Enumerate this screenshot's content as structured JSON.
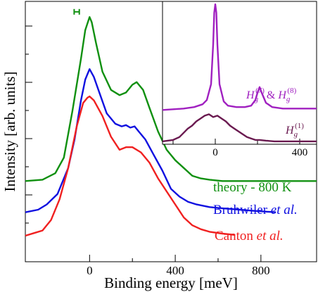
{
  "chart_data": [
    {
      "type": "line",
      "xlabel": "Binding energy [meV]",
      "ylabel": "Intensity [arb. units]",
      "xlim": [
        -300,
        1060
      ],
      "ylim": [
        0,
        100
      ],
      "x_ticks": [
        0,
        400,
        800
      ],
      "grid": false,
      "legend": "inline labels to the right of each curve",
      "error_bar": {
        "x": -60,
        "y": 96,
        "xerr": 12,
        "color": "#109010"
      },
      "series": [
        {
          "name": "theory - 800 K",
          "color": "#109010",
          "x": [
            -300,
            -220,
            -160,
            -120,
            -80,
            -40,
            -20,
            0,
            10,
            30,
            60,
            100,
            140,
            170,
            200,
            220,
            250,
            280,
            320,
            360,
            400,
            440,
            480,
            520,
            560,
            620,
            700,
            800,
            1060
          ],
          "y": [
            31,
            31.5,
            34,
            40,
            58,
            78,
            89,
            94,
            92,
            84,
            73,
            66,
            64,
            65,
            68,
            69,
            66,
            59,
            50,
            43,
            39,
            36,
            33,
            32,
            31.5,
            31,
            31,
            31,
            31
          ]
        },
        {
          "name": "Bruhwiler et al.",
          "color": "#1010e0",
          "x": [
            -300,
            -240,
            -200,
            -150,
            -100,
            -70,
            -40,
            -20,
            0,
            20,
            50,
            80,
            120,
            150,
            170,
            190,
            210,
            230,
            260,
            300,
            340,
            380,
            420,
            460,
            500,
            560,
            620,
            700,
            780,
            870
          ],
          "y": [
            19,
            20,
            22,
            26,
            36,
            47,
            62,
            70,
            74,
            71,
            64,
            57,
            53,
            52,
            52.5,
            51.5,
            52,
            50,
            47,
            41,
            35,
            28,
            25,
            23,
            22,
            21,
            20.5,
            20,
            19.5,
            19
          ]
        },
        {
          "name": "Canton et al.",
          "color": "#f02020",
          "x": [
            -300,
            -260,
            -220,
            -180,
            -140,
            -100,
            -60,
            -30,
            -10,
            0,
            20,
            60,
            100,
            140,
            170,
            200,
            240,
            280,
            320,
            360,
            400,
            440,
            480,
            520,
            560,
            620,
            680
          ],
          "y": [
            10,
            11,
            12,
            16,
            24,
            36,
            52,
            61,
            63,
            63.5,
            62,
            56,
            48,
            43,
            44,
            44,
            42,
            38,
            32,
            27,
            22,
            17,
            14,
            12.5,
            11.5,
            10.8,
            10.3
          ]
        }
      ],
      "annotations": [
        {
          "text": "theory - 800 K",
          "color": "#109010"
        },
        {
          "text": "Bruhwiler",
          "italic_suffix": "et al.",
          "color": "#1010e0"
        },
        {
          "text": "Canton",
          "italic_suffix": "et al.",
          "color": "#f02020"
        }
      ]
    },
    {
      "type": "line",
      "position": "inset top-right",
      "xlim": [
        -250,
        480
      ],
      "ylim": [
        0,
        100
      ],
      "x_ticks": [
        0,
        400
      ],
      "series": [
        {
          "color": "#a020c0",
          "x": [
            -250,
            -200,
            -150,
            -100,
            -60,
            -40,
            -20,
            -10,
            -5,
            0,
            5,
            10,
            20,
            40,
            60,
            100,
            140,
            170,
            190,
            200,
            210,
            220,
            240,
            270,
            320,
            400,
            480
          ],
          "y": [
            24,
            24.5,
            25,
            26,
            28,
            31,
            42,
            70,
            92,
            98,
            92,
            70,
            42,
            30,
            27,
            26,
            26,
            27,
            31,
            36,
            40,
            36,
            29,
            26,
            25,
            25,
            25
          ]
        },
        {
          "color": "#6a1a50",
          "x": [
            -250,
            -200,
            -170,
            -150,
            -130,
            -110,
            -90,
            -70,
            -50,
            -30,
            -10,
            10,
            30,
            50,
            70,
            90,
            110,
            130,
            150,
            170,
            190,
            210,
            240,
            280,
            330,
            380,
            430,
            480
          ],
          "y": [
            2,
            3,
            5,
            8,
            11,
            13,
            16,
            18,
            20,
            21,
            19,
            20,
            18,
            16,
            13,
            11,
            9,
            7,
            5,
            4,
            3,
            3,
            2.5,
            2,
            2,
            2,
            2,
            2
          ]
        }
      ],
      "annotations": [
        {
          "base": "H",
          "sub": "g",
          "sup": "(7)",
          "joiner": "& ",
          "base2": "H",
          "sub2": "g",
          "sup2": "(8)",
          "color": "#a020c0"
        },
        {
          "base": "H",
          "sub": "g",
          "sup": "(1)",
          "color": "#6a1a50"
        }
      ]
    }
  ]
}
